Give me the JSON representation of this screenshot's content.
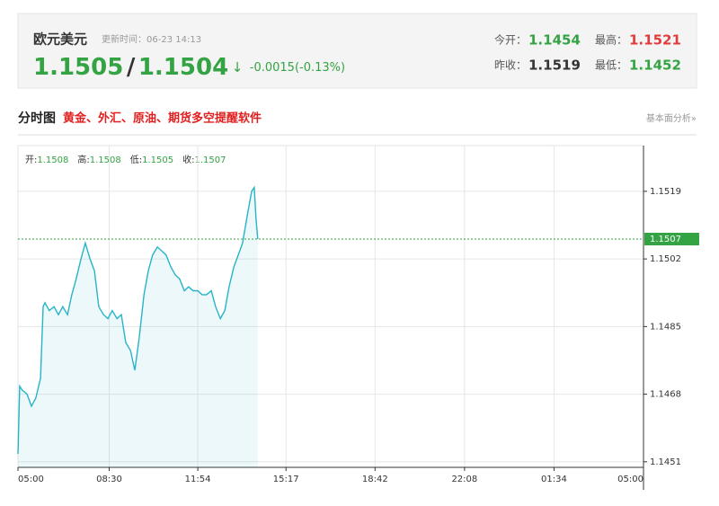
{
  "header": {
    "name": "欧元美元",
    "update_time": "更新时间：06-23 14:13",
    "bid": "1.1505",
    "separator": "/",
    "ask": "1.1504",
    "arrow": "↓",
    "change": "-0.0015(-0.13%)",
    "stats": [
      {
        "label": "今开：",
        "value": "1.1454",
        "color": "#33a343"
      },
      {
        "label": "最高：",
        "value": "1.1521",
        "color": "#e03c3c"
      },
      {
        "label": "昨收：",
        "value": "1.1519",
        "color": "#333333"
      },
      {
        "label": "最低：",
        "value": "1.1452",
        "color": "#33a343"
      }
    ]
  },
  "section": {
    "title": "分时图",
    "promo": "黄金、外汇、原油、期货多空提醒软件",
    "link": "基本面分析»"
  },
  "chart_data": {
    "type": "line",
    "info": [
      {
        "label": "开:",
        "value": "1.1508"
      },
      {
        "label": "高:",
        "value": "1.1508"
      },
      {
        "label": "低:",
        "value": "1.1505"
      },
      {
        "label": "收:",
        "value": "1.1507"
      }
    ],
    "x": [
      0,
      4,
      10,
      21,
      31,
      41,
      52,
      58,
      62,
      72,
      83,
      93,
      103,
      114,
      124,
      134,
      145,
      155,
      166,
      176,
      186,
      197,
      207,
      217,
      228,
      238,
      248,
      259,
      269,
      279,
      290,
      300,
      310,
      321,
      331,
      341,
      352,
      362,
      372,
      383,
      393,
      403,
      414,
      424,
      434,
      445,
      455,
      466,
      476,
      486,
      497,
      507,
      517,
      528,
      538,
      544,
      548,
      552
    ],
    "series": [
      {
        "color": "#27b4c8",
        "values": [
          1.1453,
          1.147,
          1.1469,
          1.1468,
          1.1465,
          1.1467,
          1.1472,
          1.149,
          1.1491,
          1.1489,
          1.149,
          1.1488,
          1.149,
          1.1488,
          1.1493,
          1.1497,
          1.1502,
          1.1506,
          1.1502,
          1.1499,
          1.149,
          1.1488,
          1.1487,
          1.1489,
          1.1487,
          1.1488,
          1.1481,
          1.1479,
          1.1474,
          1.1482,
          1.1493,
          1.1499,
          1.1503,
          1.1505,
          1.1504,
          1.1503,
          1.15,
          1.1498,
          1.1497,
          1.1494,
          1.1495,
          1.1494,
          1.1494,
          1.1493,
          1.1493,
          1.1494,
          1.149,
          1.1487,
          1.1489,
          1.1495,
          1.15,
          1.1503,
          1.1506,
          1.1513,
          1.1519,
          1.152,
          1.1512,
          1.1507
        ]
      }
    ],
    "xlim": [
      0,
      1440
    ],
    "xticks": [
      {
        "value": 0,
        "label": "05:00"
      },
      {
        "value": 210,
        "label": "08:30"
      },
      {
        "value": 414,
        "label": "11:54"
      },
      {
        "value": 617,
        "label": "15:17"
      },
      {
        "value": 822,
        "label": "18:42"
      },
      {
        "value": 1028,
        "label": "22:08"
      },
      {
        "value": 1234,
        "label": "01:34"
      },
      {
        "value": 1440,
        "label": "05:00"
      }
    ],
    "ylim": [
      1.14496,
      1.15305
    ],
    "yticks": [
      1.1451,
      1.1468,
      1.1485,
      1.1502,
      1.1519
    ],
    "current_price": 1.1507,
    "current_color": "#33a343",
    "grid": true
  }
}
